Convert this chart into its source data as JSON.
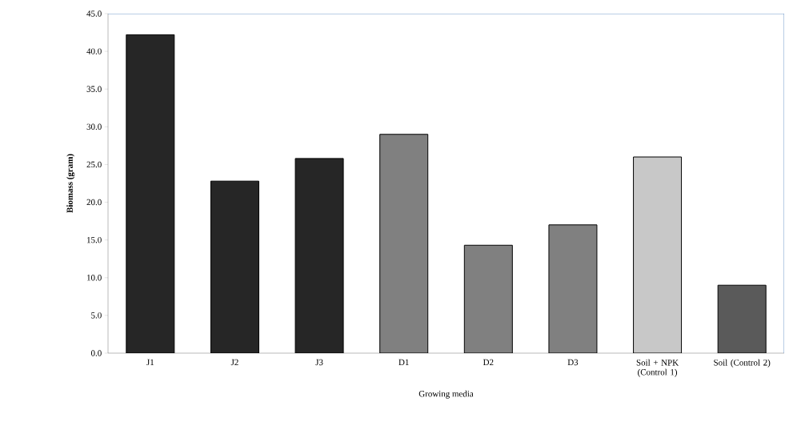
{
  "chart_data": {
    "type": "bar",
    "xlabel": "Growing media",
    "ylabel": "Biomass (gram)",
    "categories": [
      "J1",
      "J2",
      "J3",
      "D1",
      "D2",
      "D3",
      "Soil + NPK (Control 1)",
      "Soil (Control 2)"
    ],
    "values": [
      42.2,
      22.8,
      25.8,
      29.0,
      14.3,
      17.0,
      26.0,
      9.0
    ],
    "colors": [
      "#262626",
      "#262626",
      "#262626",
      "#808080",
      "#808080",
      "#808080",
      "#c8c8c8",
      "#5a5a5a"
    ],
    "ylim": [
      0,
      45
    ],
    "yticks": [
      {
        "value": 0,
        "label": "0.0"
      },
      {
        "value": 5,
        "label": "5.0"
      },
      {
        "value": 10,
        "label": "10.0"
      },
      {
        "value": 15,
        "label": "15.0"
      },
      {
        "value": 20,
        "label": "20.0"
      },
      {
        "value": 25,
        "label": "25.0"
      },
      {
        "value": 30,
        "label": "30.0"
      },
      {
        "value": 35,
        "label": "35.0"
      },
      {
        "value": 40,
        "label": "40.0"
      },
      {
        "value": 45,
        "label": "45.0"
      }
    ],
    "grid": false
  }
}
